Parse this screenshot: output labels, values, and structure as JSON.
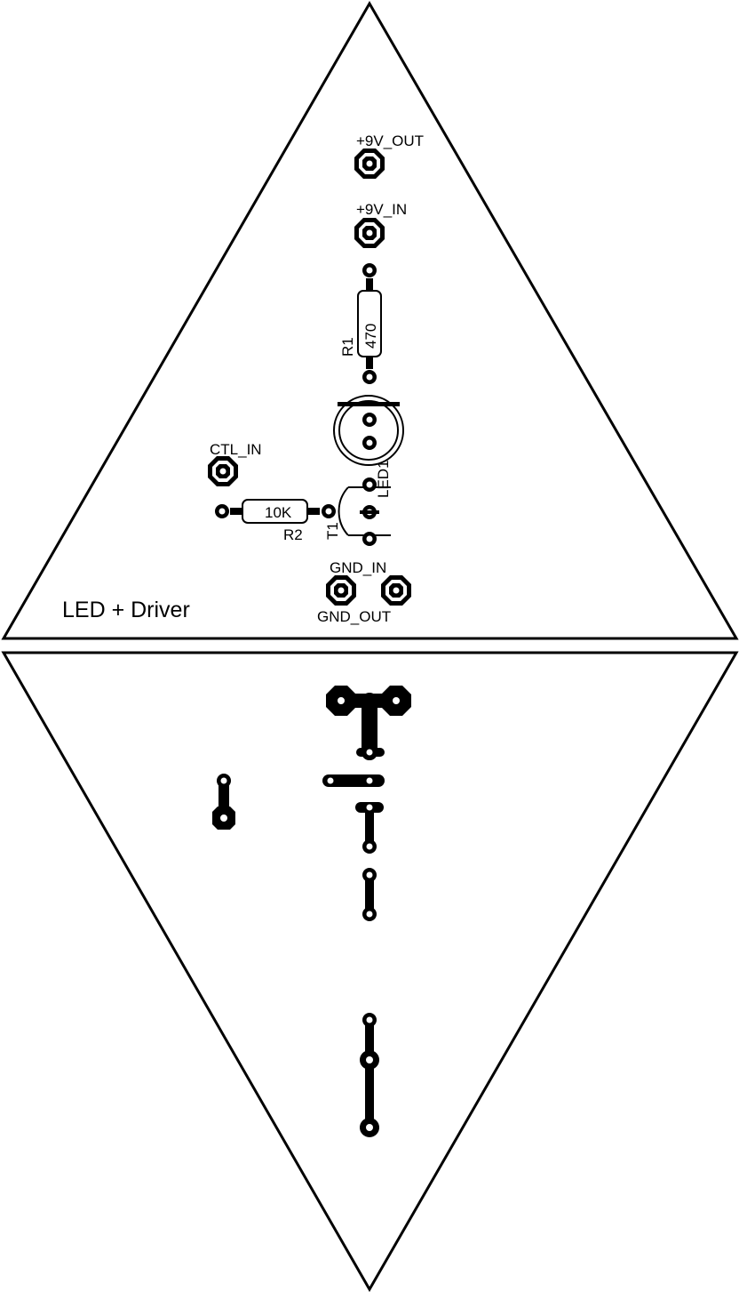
{
  "board": {
    "title": "LED + Driver"
  },
  "labels": {
    "v9_out": "+9V_OUT",
    "v9_in": "+9V_IN",
    "r1_name": "R1",
    "r1_value": "470",
    "ctl_in": "CTL_IN",
    "r2_value": "10K",
    "r2_name": "R2",
    "t1_name": "T1",
    "led1_name": "LED1",
    "gnd_in": "GND_IN",
    "gnd_out": "GND_OUT"
  },
  "colors": {
    "copper": "#000000",
    "silkscreen": "#000000",
    "background": "#ffffff"
  }
}
